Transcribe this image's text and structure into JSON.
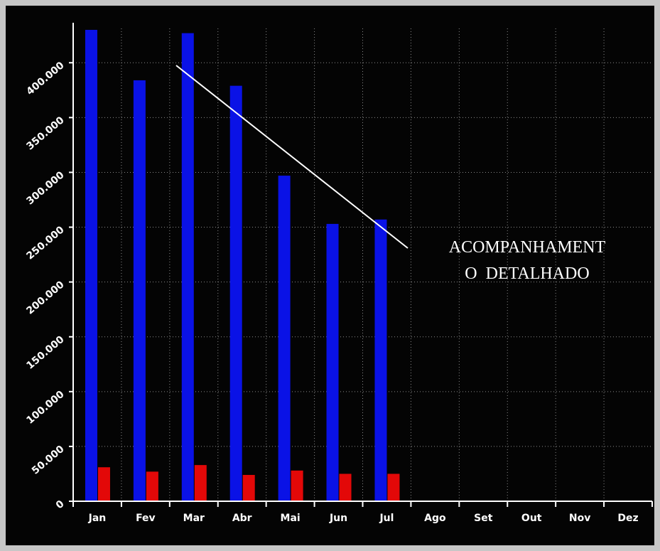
{
  "chart_data": {
    "type": "bar",
    "title": "",
    "xlabel": "",
    "ylabel": "",
    "categories": [
      "Jan",
      "Fev",
      "Mar",
      "Abr",
      "Mai",
      "Jun",
      "Jul",
      "Ago",
      "Set",
      "Out",
      "Nov",
      "Dez"
    ],
    "series": [
      {
        "color": "#0a12e6",
        "values": [
          430000,
          384000,
          427000,
          379000,
          297000,
          253000,
          257000,
          null,
          null,
          null,
          null,
          null
        ]
      },
      {
        "color": "#e30808",
        "values": [
          31000,
          27000,
          33000,
          24000,
          28000,
          25000,
          25000,
          null,
          null,
          null,
          null,
          null
        ]
      }
    ],
    "ylim": [
      0,
      430000
    ],
    "yticks": [
      0,
      50000,
      100000,
      150000,
      200000,
      250000,
      300000,
      350000,
      400000
    ],
    "ytick_labels": [
      "0",
      "50.000",
      "100.000",
      "150.000",
      "200.000",
      "250.000",
      "300.000",
      "350.000",
      "400.000"
    ],
    "grid": true,
    "annotation": {
      "lines": [
        "ACOMPANHAMENT",
        "O  DETALHADO"
      ]
    }
  }
}
